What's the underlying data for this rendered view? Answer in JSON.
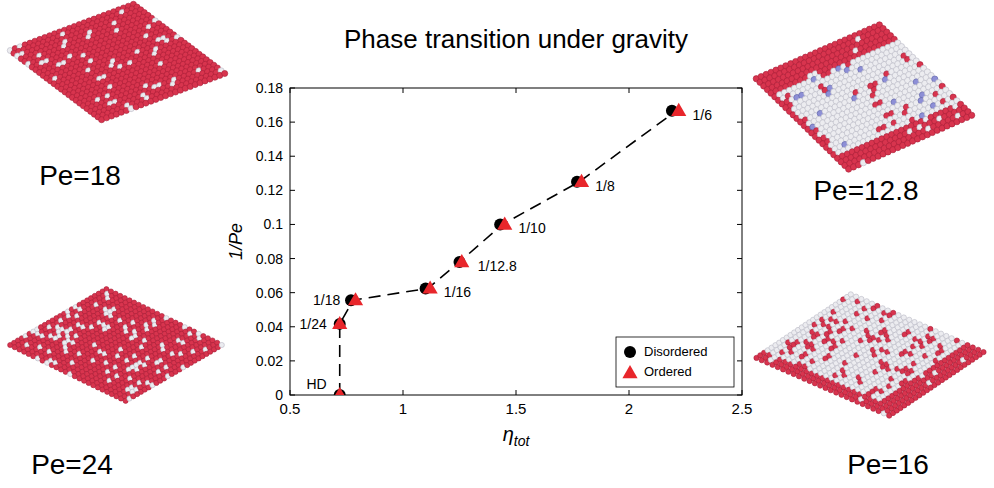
{
  "chart_data": {
    "type": "scatter",
    "title": "Phase transition under gravity",
    "x_label": "ηtot",
    "y_label": "1/Pe",
    "xlim": [
      0.5,
      2.5
    ],
    "xticks": [
      0.5,
      1,
      1.5,
      2,
      2.5
    ],
    "ylim": [
      0,
      0.18
    ],
    "yticks": [
      0,
      0.02,
      0.04,
      0.06,
      0.08,
      0.1,
      0.12,
      0.14,
      0.16,
      0.18
    ],
    "grid": false,
    "legend": "lower right",
    "series": [
      {
        "name": "Disordered",
        "color": "#000000",
        "marker": "circle",
        "x": [
          2.19,
          1.77,
          1.43,
          1.25,
          1.1,
          0.77,
          0.72,
          0.72
        ],
        "values": [
          0.1667,
          0.125,
          0.1,
          0.078,
          0.0625,
          0.0556,
          0.0417,
          0
        ]
      },
      {
        "name": "Ordered",
        "color": "#e8262b",
        "marker": "triangle",
        "x": [
          2.22,
          1.79,
          1.45,
          1.26,
          1.12,
          0.79,
          0.72,
          0.72
        ],
        "values": [
          0.1667,
          0.125,
          0.1,
          0.078,
          0.0625,
          0.0556,
          0.0417,
          0
        ]
      },
      {
        "type": "line",
        "line_style": "dashed",
        "color": "#000000",
        "x": [
          0.72,
          0.72,
          0.78,
          1.11,
          1.25,
          1.44,
          1.78,
          2.21
        ],
        "values": [
          0,
          0.0417,
          0.0556,
          0.0625,
          0.078,
          0.1,
          0.125,
          0.1667
        ]
      }
    ],
    "annotations": [
      {
        "text": "1/6",
        "x": 2.21,
        "y": 0.1667
      },
      {
        "text": "1/8",
        "x": 1.78,
        "y": 0.125
      },
      {
        "text": "1/10",
        "x": 1.44,
        "y": 0.1
      },
      {
        "text": "1/12.8",
        "x": 1.26,
        "y": 0.078
      },
      {
        "text": "1/16",
        "x": 1.11,
        "y": 0.0625
      },
      {
        "text": "1/18",
        "x": 0.78,
        "y": 0.0556
      },
      {
        "text": "1/24",
        "x": 0.72,
        "y": 0.0417
      },
      {
        "text": "HD",
        "x": 0.72,
        "y": 0
      }
    ]
  },
  "panels": [
    {
      "label": "Pe=18"
    },
    {
      "label": "Pe=24"
    },
    {
      "label": "Pe=12.8"
    },
    {
      "label": "Pe=16"
    }
  ]
}
